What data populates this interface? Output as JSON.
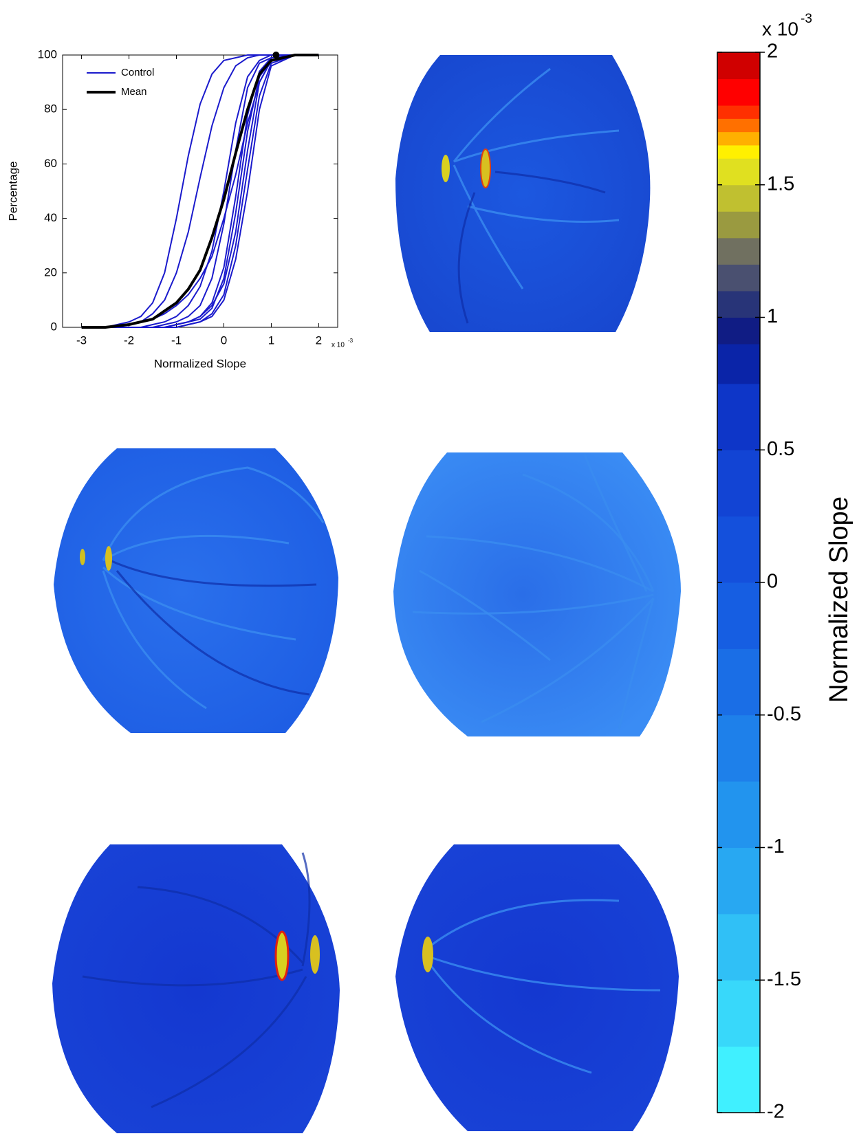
{
  "chart_data": {
    "type": "line",
    "xlabel": "Normalized Slope",
    "ylabel": "Percentage",
    "x_scale": {
      "base": "x 10",
      "exponent": "-3"
    },
    "xlim": [
      -3.4,
      2.4
    ],
    "xticks": [
      -3,
      -2,
      -1,
      0,
      1,
      2
    ],
    "ylim": [
      0,
      100
    ],
    "yticks": [
      0,
      20,
      40,
      60,
      80,
      100
    ],
    "x": [
      -3.0,
      -2.5,
      -2.0,
      -1.75,
      -1.5,
      -1.25,
      -1.0,
      -0.75,
      -0.5,
      -0.25,
      0,
      0.25,
      0.5,
      0.75,
      1.0,
      1.5,
      2.0
    ],
    "series": [
      {
        "name": "Control",
        "color": "#1a1acc",
        "curves": [
          [
            0,
            0,
            2,
            4,
            9,
            20,
            40,
            63,
            82,
            93,
            98,
            99,
            100,
            100,
            100,
            100,
            100
          ],
          [
            0,
            0,
            1,
            2,
            5,
            10,
            20,
            35,
            55,
            74,
            88,
            96,
            99,
            100,
            100,
            100,
            100
          ],
          [
            0,
            0,
            0,
            0,
            1,
            2,
            4,
            8,
            15,
            28,
            50,
            75,
            92,
            98,
            100,
            100,
            100
          ],
          [
            0,
            0,
            0,
            0,
            0,
            1,
            2,
            4,
            8,
            18,
            38,
            65,
            88,
            97,
            99,
            100,
            100
          ],
          [
            0,
            0,
            0,
            0,
            0,
            0,
            1,
            2,
            4,
            9,
            22,
            48,
            78,
            94,
            99,
            100,
            100
          ],
          [
            0,
            0,
            0,
            0,
            0,
            0,
            1,
            2,
            3,
            7,
            18,
            42,
            72,
            92,
            98,
            100,
            100
          ],
          [
            0,
            0,
            0,
            0,
            0,
            0,
            0,
            1,
            2,
            5,
            12,
            30,
            58,
            85,
            97,
            100,
            100
          ],
          [
            0,
            0,
            1,
            2,
            3,
            5,
            8,
            12,
            18,
            26,
            40,
            56,
            75,
            90,
            98,
            100,
            100
          ],
          [
            0,
            0,
            0,
            0,
            0,
            0,
            1,
            2,
            4,
            8,
            16,
            35,
            65,
            90,
            98,
            100,
            100
          ],
          [
            0,
            0,
            0,
            0,
            0,
            0,
            0,
            1,
            2,
            4,
            10,
            25,
            50,
            80,
            96,
            100,
            100
          ]
        ]
      },
      {
        "name": "Mean",
        "color": "#000000",
        "values": [
          0,
          0,
          1,
          2,
          3,
          6,
          9,
          14,
          21,
          33,
          47,
          64,
          80,
          93,
          98,
          100,
          100
        ]
      }
    ],
    "mean_marker": {
      "x": 1.1,
      "y": 100
    },
    "colorbar": {
      "label": "Normalized Slope",
      "scale": {
        "base": "x 10",
        "exponent": "-3"
      },
      "clim": [
        -2,
        2
      ],
      "ticks": [
        -2,
        -1.5,
        -1,
        -0.5,
        0,
        0.5,
        1,
        1.5,
        2
      ],
      "bands": [
        {
          "value": -2,
          "color": "#40f0ff"
        },
        {
          "value": -1.75,
          "color": "#38d8fa"
        },
        {
          "value": -1.5,
          "color": "#30c0f6"
        },
        {
          "value": -1.25,
          "color": "#28a8f2"
        },
        {
          "value": -1,
          "color": "#2294ee"
        },
        {
          "value": -0.75,
          "color": "#1e80ea"
        },
        {
          "value": -0.5,
          "color": "#1a6ee6"
        },
        {
          "value": -0.25,
          "color": "#165ee2"
        },
        {
          "value": 0,
          "color": "#1450dc"
        },
        {
          "value": 0.25,
          "color": "#1244d4"
        },
        {
          "value": 0.5,
          "color": "#0e36c8"
        },
        {
          "value": 0.75,
          "color": "#0a24a8"
        },
        {
          "value": 0.9,
          "color": "#101c84"
        },
        {
          "value": 1.0,
          "color": "#283478"
        },
        {
          "value": 1.1,
          "color": "#4a5070"
        },
        {
          "value": 1.2,
          "color": "#707060"
        },
        {
          "value": 1.3,
          "color": "#9a9a40"
        },
        {
          "value": 1.4,
          "color": "#c0c030"
        },
        {
          "value": 1.5,
          "color": "#e0e020"
        },
        {
          "value": 1.6,
          "color": "#fff000"
        },
        {
          "value": 1.65,
          "color": "#ffb000"
        },
        {
          "value": 1.7,
          "color": "#ff7000"
        },
        {
          "value": 1.75,
          "color": "#ff3000"
        },
        {
          "value": 1.8,
          "color": "#ff0000"
        },
        {
          "value": 1.9,
          "color": "#d00000"
        }
      ]
    }
  }
}
